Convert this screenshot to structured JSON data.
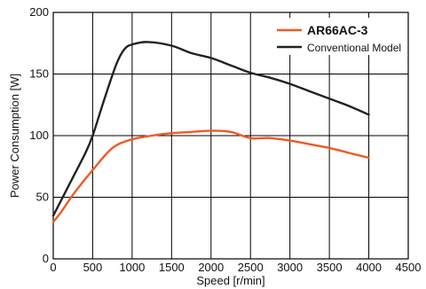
{
  "chart_data": {
    "type": "line",
    "title": "",
    "xlabel": "Speed [r/min]",
    "ylabel": "Power Consumption [W]",
    "xlim": [
      0,
      4500
    ],
    "ylim": [
      0,
      200
    ],
    "xticks": [
      0,
      500,
      1000,
      1500,
      2000,
      2500,
      3000,
      3500,
      4000,
      4500
    ],
    "yticks": [
      0,
      50,
      100,
      150,
      200
    ],
    "grid": true,
    "legend_position": "top-right",
    "series": [
      {
        "name": "AR66AC-3",
        "color": "#ee5a24",
        "legend_bold": true,
        "points": [
          [
            0,
            30
          ],
          [
            100,
            38
          ],
          [
            250,
            52
          ],
          [
            500,
            72
          ],
          [
            750,
            90
          ],
          [
            1000,
            97
          ],
          [
            1250,
            100
          ],
          [
            1500,
            102
          ],
          [
            1750,
            103
          ],
          [
            2000,
            104
          ],
          [
            2250,
            103
          ],
          [
            2500,
            98
          ],
          [
            2750,
            98
          ],
          [
            3000,
            96
          ],
          [
            3250,
            93
          ],
          [
            3500,
            90
          ],
          [
            3750,
            86
          ],
          [
            4000,
            82
          ]
        ]
      },
      {
        "name": "Conventional Model",
        "color": "#222222",
        "legend_bold": false,
        "points": [
          [
            0,
            35
          ],
          [
            200,
            60
          ],
          [
            400,
            85
          ],
          [
            500,
            100
          ],
          [
            650,
            130
          ],
          [
            800,
            158
          ],
          [
            900,
            170
          ],
          [
            1000,
            174
          ],
          [
            1200,
            176
          ],
          [
            1500,
            173
          ],
          [
            1750,
            167
          ],
          [
            2000,
            163
          ],
          [
            2250,
            157
          ],
          [
            2500,
            151
          ],
          [
            2750,
            147
          ],
          [
            3000,
            142
          ],
          [
            3250,
            136
          ],
          [
            3500,
            130
          ],
          [
            3750,
            124
          ],
          [
            4000,
            117
          ]
        ]
      }
    ]
  }
}
